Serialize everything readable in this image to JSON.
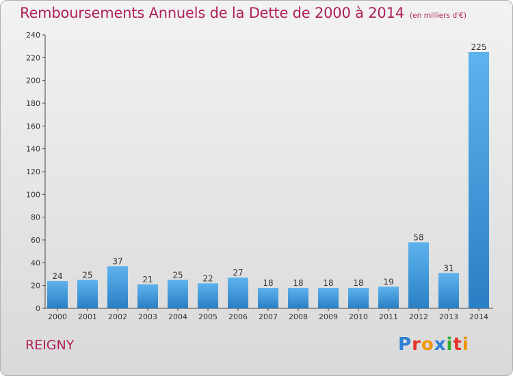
{
  "title": "Remboursements Annuels de la Dette de 2000 à 2014",
  "subtitle": "(en milliers d'€)",
  "commune": "REIGNY",
  "logo": {
    "letters": [
      "P",
      "r",
      "o",
      "x",
      "i",
      "t",
      "i"
    ],
    "colors": [
      "#2e7fd6",
      "#e6332a",
      "#f29400",
      "#2e7fd6",
      "#3aa935",
      "#e6332a",
      "#f29400"
    ]
  },
  "colors": {
    "bar_light": "#5eb3ee",
    "bar_dark": "#2a7fc4",
    "title": "#b0205c"
  },
  "chart_data": {
    "type": "bar",
    "title": "Remboursements Annuels de la Dette de 2000 à 2014",
    "xlabel": "",
    "ylabel": "",
    "categories": [
      "2000",
      "2001",
      "2002",
      "2003",
      "2004",
      "2005",
      "2006",
      "2007",
      "2008",
      "2009",
      "2010",
      "2011",
      "2012",
      "2013",
      "2014"
    ],
    "values": [
      24,
      25,
      37,
      21,
      25,
      22,
      27,
      18,
      18,
      18,
      18,
      19,
      58,
      31,
      225
    ],
    "ylim": [
      0,
      240
    ],
    "yticks": [
      0,
      20,
      40,
      60,
      80,
      100,
      120,
      140,
      160,
      180,
      200,
      220,
      240
    ],
    "grid": false,
    "legend": "none"
  }
}
